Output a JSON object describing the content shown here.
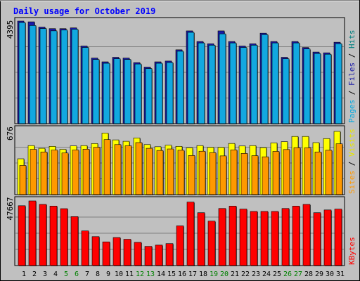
{
  "chart_data": [
    {
      "type": "bar",
      "title": "Daily usage for October 2019",
      "categories": [
        "1",
        "2",
        "3",
        "4",
        "5",
        "6",
        "7",
        "8",
        "9",
        "10",
        "11",
        "12",
        "13",
        "14",
        "15",
        "16",
        "17",
        "18",
        "19",
        "20",
        "21",
        "22",
        "23",
        "24",
        "25",
        "26",
        "27",
        "28",
        "29",
        "30",
        "31"
      ],
      "weekend_days": [
        "5",
        "6",
        "12",
        "13",
        "19",
        "20",
        "26",
        "27"
      ],
      "ylabel_max": "4395",
      "ylim": [
        0,
        4395
      ],
      "grid": true,
      "legend": [
        "Pages",
        "Files",
        "Hits"
      ],
      "series": [
        {
          "name": "Hits",
          "color": "#1a1aa8",
          "values": [
            4395,
            4363,
            4137,
            4072,
            4072,
            4105,
            3327,
            2811,
            2649,
            2843,
            2811,
            2617,
            2423,
            2649,
            2682,
            3165,
            3975,
            3520,
            3424,
            3975,
            3520,
            3327,
            3424,
            3878,
            3520,
            2843,
            3520,
            3262,
            3068,
            3036,
            3488
          ]
        },
        {
          "name": "Files",
          "color": "#12a8e0",
          "values": [
            4363,
            4234,
            4105,
            4008,
            4040,
            4072,
            3294,
            2779,
            2617,
            2811,
            2779,
            2585,
            2391,
            2617,
            2650,
            3133,
            3943,
            3488,
            3392,
            3878,
            3488,
            3294,
            3392,
            3846,
            3488,
            2811,
            3488,
            3230,
            3036,
            3004,
            3456
          ]
        },
        {
          "name": "Pages",
          "color": "#00d2d2",
          "values": [
            0,
            0,
            0,
            0,
            0,
            0,
            0,
            0,
            0,
            0,
            0,
            0,
            0,
            0,
            0,
            0,
            0,
            0,
            0,
            0,
            0,
            0,
            0,
            0,
            0,
            0,
            0,
            0,
            0,
            0,
            0
          ]
        }
      ]
    },
    {
      "type": "bar",
      "ylabel_max": "676",
      "ylim": [
        0,
        676
      ],
      "grid": true,
      "legend": [
        "Sites",
        "Visits"
      ],
      "series": [
        {
          "name": "Visits",
          "color": "#ffff00",
          "values": [
            383,
            524,
            495,
            516,
            484,
            521,
            524,
            546,
            658,
            585,
            570,
            606,
            535,
            512,
            528,
            516,
            500,
            524,
            505,
            505,
            547,
            520,
            524,
            502,
            553,
            566,
            622,
            622,
            556,
            599,
            676
          ]
        },
        {
          "name": "Sites",
          "color": "#ff9900",
          "values": [
            312,
            484,
            456,
            476,
            445,
            477,
            486,
            506,
            588,
            535,
            522,
            556,
            495,
            472,
            488,
            474,
            418,
            464,
            449,
            414,
            478,
            440,
            416,
            404,
            462,
            482,
            502,
            500,
            456,
            474,
            543
          ]
        }
      ]
    },
    {
      "type": "bar",
      "ylabel_max": "47667",
      "ylim": [
        0,
        47667
      ],
      "grid": true,
      "legend": [
        "KBytes"
      ],
      "series": [
        {
          "name": "KBytes",
          "color": "#ff0000",
          "values": [
            44130,
            47667,
            45108,
            43888,
            41962,
            36087,
            25545,
            21358,
            17450,
            20659,
            19398,
            17100,
            14160,
            15087,
            16214,
            29268,
            46822,
            38992,
            32769,
            42098,
            43856,
            41650,
            39914,
            39914,
            39914,
            42098,
            43856,
            45108,
            38992,
            41019,
            41650
          ]
        }
      ]
    }
  ]
}
